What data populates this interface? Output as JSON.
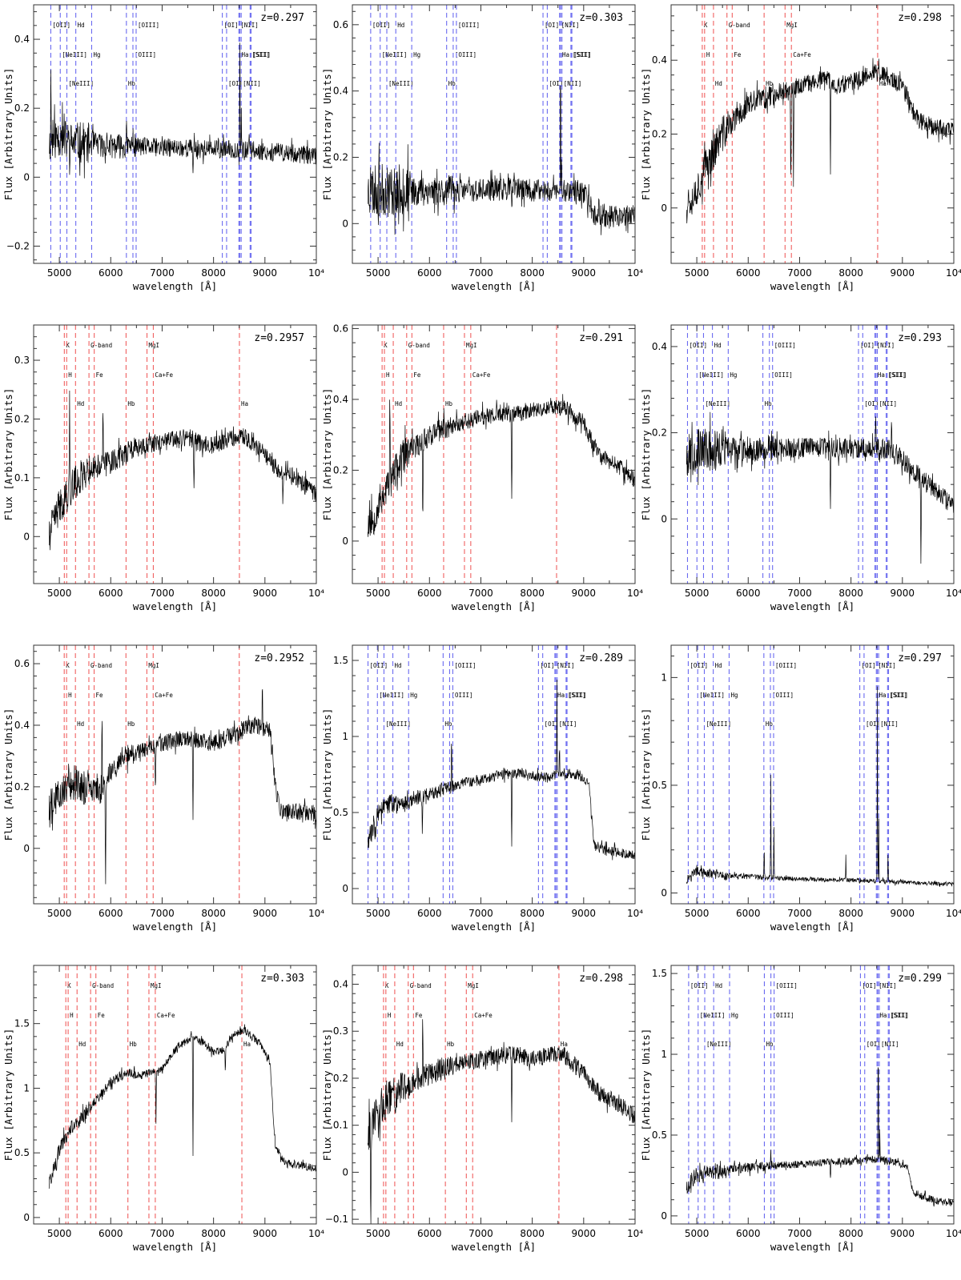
{
  "figure": {
    "xlabel": "wavelength [Å]",
    "ylabel": "Flux [Arbitrary Units]",
    "xlim": [
      4500,
      10000
    ],
    "xticks": [
      5000,
      6000,
      7000,
      8000,
      9000,
      10000
    ],
    "xtick_labels": [
      "5000",
      "6000",
      "7000",
      "8000",
      "9000",
      "10⁴"
    ],
    "colors": {
      "spectrum": "#000000",
      "emission_lines": "#6a6af0",
      "absorption_lines": "#f06060"
    },
    "emission_set": {
      "lines": [
        {
          "label": "[OII]",
          "rest": 3727,
          "row": 0
        },
        {
          "label": "[NeIII]",
          "rest": 3869,
          "row": 1
        },
        {
          "label": "[NeIII]",
          "rest": 3968,
          "row": 2
        },
        {
          "label": "Hd",
          "rest": 4102,
          "row": 0
        },
        {
          "label": "Hg",
          "rest": 4340,
          "row": 1
        },
        {
          "label": "Hb",
          "rest": 4861,
          "row": 2
        },
        {
          "label": "[OIII]",
          "rest": 4959,
          "row": 1
        },
        {
          "label": "[OIII]",
          "rest": 5007,
          "row": 0
        },
        {
          "label": "[OI]",
          "rest": 6300,
          "row": 0
        },
        {
          "label": "[OI]",
          "rest": 6364,
          "row": 2
        },
        {
          "label": "Ha",
          "rest": 6563,
          "row": 1
        },
        {
          "label": "[NII]",
          "rest": 6583,
          "row": 2
        },
        {
          "label": "[NII]",
          "rest": 6548,
          "row": 0
        },
        {
          "label": "[SII]",
          "rest": 6717,
          "row": 1
        },
        {
          "label": "[SII]",
          "rest": 6731,
          "row": 1
        }
      ]
    },
    "absorption_set": {
      "lines": [
        {
          "label": "K",
          "rest": 3934,
          "row": 0
        },
        {
          "label": "H",
          "rest": 3969,
          "row": 1
        },
        {
          "label": "Hd",
          "rest": 4102,
          "row": 2
        },
        {
          "label": "G-band",
          "rest": 4304,
          "row": 0
        },
        {
          "label": "Fe",
          "rest": 4383,
          "row": 1
        },
        {
          "label": "Hb",
          "rest": 4861,
          "row": 2
        },
        {
          "label": "MgI",
          "rest": 5175,
          "row": 0
        },
        {
          "label": "Ca+Fe",
          "rest": 5270,
          "row": 1
        },
        {
          "label": "Ha",
          "rest": 6563,
          "row": 2
        }
      ]
    }
  },
  "chart_data": [
    {
      "type": "line",
      "title": "z=0.297",
      "line_set": "emission",
      "ylim": [
        -0.25,
        0.5
      ],
      "yticks": [
        -0.2,
        0,
        0.2,
        0.4
      ],
      "ytick_labels": [
        "−0.2",
        "0",
        "0.2",
        "0.4"
      ],
      "seed": 11,
      "noise": [
        0.06,
        0.012
      ],
      "x": [
        4800,
        4900,
        5000,
        5200,
        5500,
        6000,
        6500,
        7000,
        7500,
        8000,
        8500,
        9000,
        9500,
        10000
      ],
      "y": [
        0.1,
        0.11,
        0.12,
        0.1,
        0.1,
        0.09,
        0.09,
        0.085,
        0.085,
        0.08,
        0.08,
        0.075,
        0.07,
        0.06
      ],
      "peaks": [
        [
          4836,
          0.35
        ],
        [
          5039,
          0.18
        ],
        [
          6305,
          0.14
        ],
        [
          6430,
          0.18
        ],
        [
          8512,
          0.45
        ],
        [
          8540,
          0.2
        ]
      ],
      "dips": [
        [
          7600,
          0.02
        ]
      ]
    },
    {
      "type": "line",
      "title": "z=0.303",
      "line_set": "emission",
      "ylim": [
        -0.12,
        0.66
      ],
      "yticks": [
        0,
        0.2,
        0.4,
        0.6
      ],
      "ytick_labels": [
        "0",
        "0.2",
        "0.4",
        "0.6"
      ],
      "seed": 23,
      "noise": [
        0.08,
        0.012
      ],
      "x": [
        4800,
        4900,
        5000,
        5200,
        5500,
        6000,
        6500,
        7000,
        7500,
        8000,
        8500,
        8900,
        9100,
        9200,
        9500,
        10000
      ],
      "y": [
        0.1,
        0.1,
        0.1,
        0.1,
        0.1,
        0.1,
        0.1,
        0.1,
        0.105,
        0.1,
        0.1,
        0.1,
        0.07,
        0.03,
        0.02,
        0.03
      ],
      "peaks": [
        [
          4856,
          0.26
        ],
        [
          8550,
          0.58
        ],
        [
          8570,
          0.25
        ]
      ],
      "dips": [
        [
          7600,
          0.04
        ]
      ]
    },
    {
      "type": "line",
      "title": "z=0.298",
      "line_set": "absorption",
      "ylim": [
        -0.15,
        0.55
      ],
      "yticks": [
        0,
        0.2,
        0.4
      ],
      "ytick_labels": [
        "0",
        "0.2",
        "0.4"
      ],
      "seed": 37,
      "noise": [
        0.05,
        0.015
      ],
      "x": [
        4800,
        4900,
        5000,
        5200,
        5500,
        6000,
        6500,
        7000,
        7500,
        7700,
        8000,
        8200,
        8400,
        8600,
        9000,
        9300,
        9600,
        10000
      ],
      "y": [
        0.02,
        0.03,
        0.05,
        0.12,
        0.2,
        0.28,
        0.31,
        0.33,
        0.35,
        0.33,
        0.34,
        0.35,
        0.37,
        0.36,
        0.33,
        0.24,
        0.22,
        0.21
      ],
      "peaks": [],
      "dips": [
        [
          7600,
          0.12
        ],
        [
          6830,
          0.03
        ],
        [
          6880,
          0.05
        ]
      ]
    },
    {
      "type": "line",
      "title": "z=0.2957",
      "line_set": "absorption",
      "ylim": [
        -0.08,
        0.36
      ],
      "yticks": [
        0,
        0.1,
        0.2,
        0.3
      ],
      "ytick_labels": [
        "0",
        "0.1",
        "0.2",
        "0.3"
      ],
      "seed": 41,
      "noise": [
        0.03,
        0.01
      ],
      "x": [
        4800,
        4900,
        5000,
        5200,
        5500,
        6000,
        6500,
        7000,
        7500,
        7700,
        8000,
        8300,
        8600,
        9000,
        9300,
        9600,
        10000
      ],
      "y": [
        0.0,
        0.03,
        0.05,
        0.08,
        0.11,
        0.13,
        0.15,
        0.16,
        0.17,
        0.16,
        0.155,
        0.165,
        0.17,
        0.14,
        0.11,
        0.1,
        0.07
      ],
      "peaks": [
        [
          5200,
          0.25
        ],
        [
          5850,
          0.24
        ]
      ],
      "dips": [
        [
          7620,
          0.07
        ],
        [
          9350,
          0.05
        ]
      ]
    },
    {
      "type": "line",
      "title": "z=0.291",
      "line_set": "absorption",
      "ylim": [
        -0.12,
        0.61
      ],
      "yticks": [
        0,
        0.2,
        0.4,
        0.6
      ],
      "ytick_labels": [
        "0",
        "0.2",
        "0.4",
        "0.6"
      ],
      "seed": 53,
      "noise": [
        0.05,
        0.015
      ],
      "x": [
        4800,
        4900,
        5000,
        5200,
        5500,
        6000,
        6500,
        7000,
        7500,
        7700,
        8000,
        8300,
        8500,
        8700,
        9000,
        9300,
        9600,
        10000
      ],
      "y": [
        0.05,
        0.06,
        0.1,
        0.16,
        0.24,
        0.3,
        0.33,
        0.35,
        0.36,
        0.36,
        0.37,
        0.38,
        0.38,
        0.37,
        0.33,
        0.24,
        0.22,
        0.17
      ],
      "peaks": [
        [
          5230,
          0.48
        ]
      ],
      "dips": [
        [
          7600,
          0.1
        ],
        [
          5870,
          0.05
        ]
      ]
    },
    {
      "type": "line",
      "title": "z=0.293",
      "line_set": "emission",
      "ylim": [
        -0.15,
        0.45
      ],
      "yticks": [
        0,
        0.2,
        0.4
      ],
      "ytick_labels": [
        "0",
        "0.2",
        "0.4"
      ],
      "seed": 67,
      "noise": [
        0.05,
        0.012
      ],
      "x": [
        4800,
        4900,
        5000,
        5200,
        5500,
        6000,
        6500,
        7000,
        7500,
        8000,
        8500,
        8800,
        9000,
        9300,
        9600,
        10000
      ],
      "y": [
        0.15,
        0.15,
        0.16,
        0.16,
        0.16,
        0.16,
        0.165,
        0.165,
        0.165,
        0.165,
        0.165,
        0.16,
        0.14,
        0.1,
        0.07,
        0.03
      ],
      "peaks": [
        [
          8480,
          0.26
        ],
        [
          8790,
          0.26
        ]
      ],
      "dips": [
        [
          7600,
          0.03
        ],
        [
          9360,
          -0.1
        ]
      ]
    },
    {
      "type": "line",
      "title": "z=0.2952",
      "line_set": "absorption",
      "ylim": [
        -0.18,
        0.66
      ],
      "yticks": [
        0,
        0.2,
        0.4,
        0.6
      ],
      "ytick_labels": [
        "0",
        "0.2",
        "0.4",
        "0.6"
      ],
      "seed": 79,
      "noise": [
        0.06,
        0.015
      ],
      "x": [
        4800,
        4900,
        5000,
        5200,
        5500,
        5800,
        6000,
        6300,
        6600,
        7000,
        7500,
        7700,
        8000,
        8400,
        8800,
        9100,
        9200,
        9300,
        9600,
        10000
      ],
      "y": [
        0.12,
        0.15,
        0.18,
        0.22,
        0.2,
        0.18,
        0.25,
        0.3,
        0.32,
        0.34,
        0.36,
        0.35,
        0.34,
        0.37,
        0.4,
        0.38,
        0.2,
        0.12,
        0.12,
        0.11
      ],
      "peaks": [
        [
          5830,
          0.5
        ],
        [
          8950,
          0.55
        ]
      ],
      "dips": [
        [
          7600,
          0.08
        ],
        [
          5900,
          -0.15
        ],
        [
          6870,
          0.16
        ]
      ]
    },
    {
      "type": "line",
      "title": "z=0.289",
      "line_set": "emission",
      "ylim": [
        -0.1,
        1.6
      ],
      "yticks": [
        0,
        0.5,
        1,
        1.5
      ],
      "ytick_labels": [
        "0",
        "0.5",
        "1",
        "1.5"
      ],
      "seed": 83,
      "noise": [
        0.07,
        0.02
      ],
      "x": [
        4800,
        4900,
        5000,
        5200,
        5500,
        6000,
        6500,
        7000,
        7500,
        7800,
        8000,
        8300,
        8600,
        8900,
        9100,
        9200,
        9400,
        9700,
        10000
      ],
      "y": [
        0.3,
        0.4,
        0.5,
        0.55,
        0.57,
        0.62,
        0.68,
        0.72,
        0.75,
        0.76,
        0.74,
        0.73,
        0.76,
        0.75,
        0.7,
        0.3,
        0.25,
        0.24,
        0.22
      ],
      "peaks": [
        [
          6430,
          1.05
        ],
        [
          8480,
          1.35
        ],
        [
          8530,
          0.95
        ]
      ],
      "dips": [
        [
          7600,
          0.3
        ],
        [
          5860,
          0.35
        ]
      ]
    },
    {
      "type": "line",
      "title": "z=0.297",
      "line_set": "emission",
      "ylim": [
        -0.05,
        1.15
      ],
      "yticks": [
        0,
        0.5,
        1
      ],
      "ytick_labels": [
        "0",
        "0.5",
        "1"
      ],
      "seed": 97,
      "noise": [
        0.02,
        0.006
      ],
      "x": [
        4800,
        4900,
        5000,
        5200,
        5500,
        6000,
        6500,
        7000,
        7500,
        8000,
        8500,
        9000,
        9500,
        10000
      ],
      "y": [
        0.06,
        0.09,
        0.1,
        0.09,
        0.08,
        0.075,
        0.07,
        0.065,
        0.06,
        0.06,
        0.055,
        0.05,
        0.045,
        0.04
      ],
      "peaks": [
        [
          6310,
          0.24
        ],
        [
          6440,
          0.55
        ],
        [
          6500,
          0.3
        ],
        [
          7900,
          0.18
        ],
        [
          8513,
          1.0
        ],
        [
          8540,
          0.35
        ],
        [
          8720,
          0.18
        ]
      ],
      "dips": []
    },
    {
      "type": "line",
      "title": "z=0.303",
      "line_set": "absorption",
      "ylim": [
        -0.05,
        1.95
      ],
      "yticks": [
        0,
        0.5,
        1,
        1.5
      ],
      "ytick_labels": [
        "0",
        "0.5",
        "1",
        "1.5"
      ],
      "seed": 101,
      "noise": [
        0.06,
        0.02
      ],
      "x": [
        4800,
        4900,
        5000,
        5200,
        5500,
        5800,
        6000,
        6300,
        6600,
        7000,
        7300,
        7600,
        7800,
        8000,
        8200,
        8400,
        8600,
        8900,
        9100,
        9200,
        9400,
        9700,
        10000
      ],
      "y": [
        0.25,
        0.4,
        0.52,
        0.68,
        0.8,
        0.95,
        1.05,
        1.12,
        1.1,
        1.15,
        1.32,
        1.4,
        1.35,
        1.28,
        1.3,
        1.42,
        1.45,
        1.35,
        1.2,
        0.55,
        0.42,
        0.4,
        0.38
      ],
      "peaks": [],
      "dips": [
        [
          7600,
          0.5
        ],
        [
          6880,
          0.75
        ],
        [
          8230,
          1.08
        ]
      ]
    },
    {
      "type": "line",
      "title": "z=0.298",
      "line_set": "absorption",
      "ylim": [
        -0.11,
        0.44
      ],
      "yticks": [
        -0.1,
        0,
        0.1,
        0.2,
        0.3,
        0.4
      ],
      "ytick_labels": [
        "−0.1",
        "0",
        "0.1",
        "0.2",
        "0.3",
        "0.4"
      ],
      "seed": 113,
      "noise": [
        0.04,
        0.01
      ],
      "x": [
        4800,
        4900,
        5000,
        5200,
        5500,
        6000,
        6500,
        7000,
        7500,
        7700,
        8000,
        8300,
        8600,
        9000,
        9300,
        9600,
        10000
      ],
      "y": [
        0.08,
        0.1,
        0.13,
        0.16,
        0.18,
        0.21,
        0.23,
        0.24,
        0.25,
        0.25,
        0.24,
        0.25,
        0.25,
        0.21,
        0.17,
        0.15,
        0.12
      ],
      "peaks": [
        [
          5870,
          0.36
        ]
      ],
      "dips": [
        [
          7600,
          0.11
        ],
        [
          4860,
          -0.08
        ]
      ]
    },
    {
      "type": "line",
      "title": "z=0.299",
      "line_set": "emission",
      "ylim": [
        -0.05,
        1.55
      ],
      "yticks": [
        0,
        0.5,
        1,
        1.5
      ],
      "ytick_labels": [
        "0",
        "0.5",
        "1",
        "1.5"
      ],
      "seed": 127,
      "noise": [
        0.05,
        0.012
      ],
      "x": [
        4800,
        4900,
        5000,
        5200,
        5500,
        6000,
        6500,
        7000,
        7500,
        8000,
        8500,
        8900,
        9100,
        9200,
        9400,
        9700,
        10000
      ],
      "y": [
        0.18,
        0.22,
        0.25,
        0.27,
        0.28,
        0.3,
        0.31,
        0.32,
        0.33,
        0.34,
        0.35,
        0.33,
        0.3,
        0.15,
        0.12,
        0.09,
        0.08
      ],
      "peaks": [
        [
          6440,
          0.45
        ],
        [
          8530,
          1.25
        ],
        [
          8560,
          0.55
        ]
      ],
      "dips": [
        [
          7600,
          0.2
        ]
      ]
    }
  ]
}
